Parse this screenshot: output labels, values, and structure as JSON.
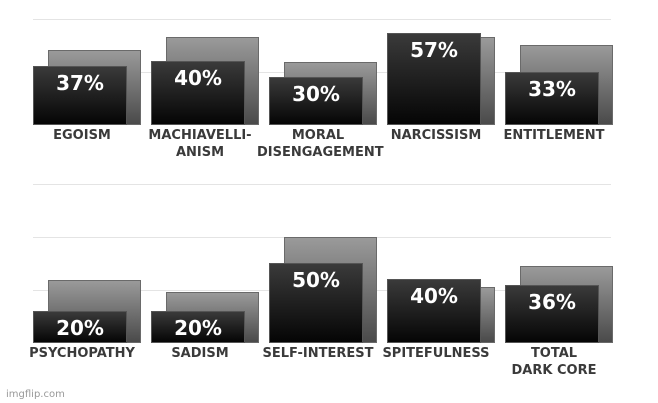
{
  "chart_data": [
    {
      "type": "bar",
      "categories": [
        "EGOISM",
        "MACHIAVELLI-\nANISM",
        "MORAL\nDISENGAGEMENT",
        "NARCISSISM",
        "ENTITLEMENT"
      ],
      "series": [
        {
          "color": "#111111",
          "values": [
            37,
            40,
            30,
            57,
            33
          ],
          "value_labels": [
            "37%",
            "40%",
            "30%",
            "57%",
            "33%"
          ]
        },
        {
          "color": "#777777",
          "values": [
            47,
            55,
            39,
            55,
            50
          ]
        }
      ],
      "ylim": [
        0,
        66
      ],
      "yticks": [
        33,
        66
      ],
      "grid": true
    },
    {
      "type": "bar",
      "categories": [
        "PSYCHOPATHY",
        "SADISM",
        "SELF-INTEREST",
        "SPITEFULNESS",
        "TOTAL\nDARK CORE"
      ],
      "series": [
        {
          "color": "#111111",
          "values": [
            20,
            20,
            50,
            40,
            36
          ],
          "value_labels": [
            "20%",
            "20%",
            "50%",
            "40%",
            "36%"
          ]
        },
        {
          "color": "#777777",
          "values": [
            39,
            32,
            66,
            35,
            48
          ]
        }
      ],
      "ylim": [
        0,
        99
      ],
      "yticks": [
        33,
        66,
        99
      ],
      "grid": true
    }
  ],
  "watermark": "imgflip.com"
}
